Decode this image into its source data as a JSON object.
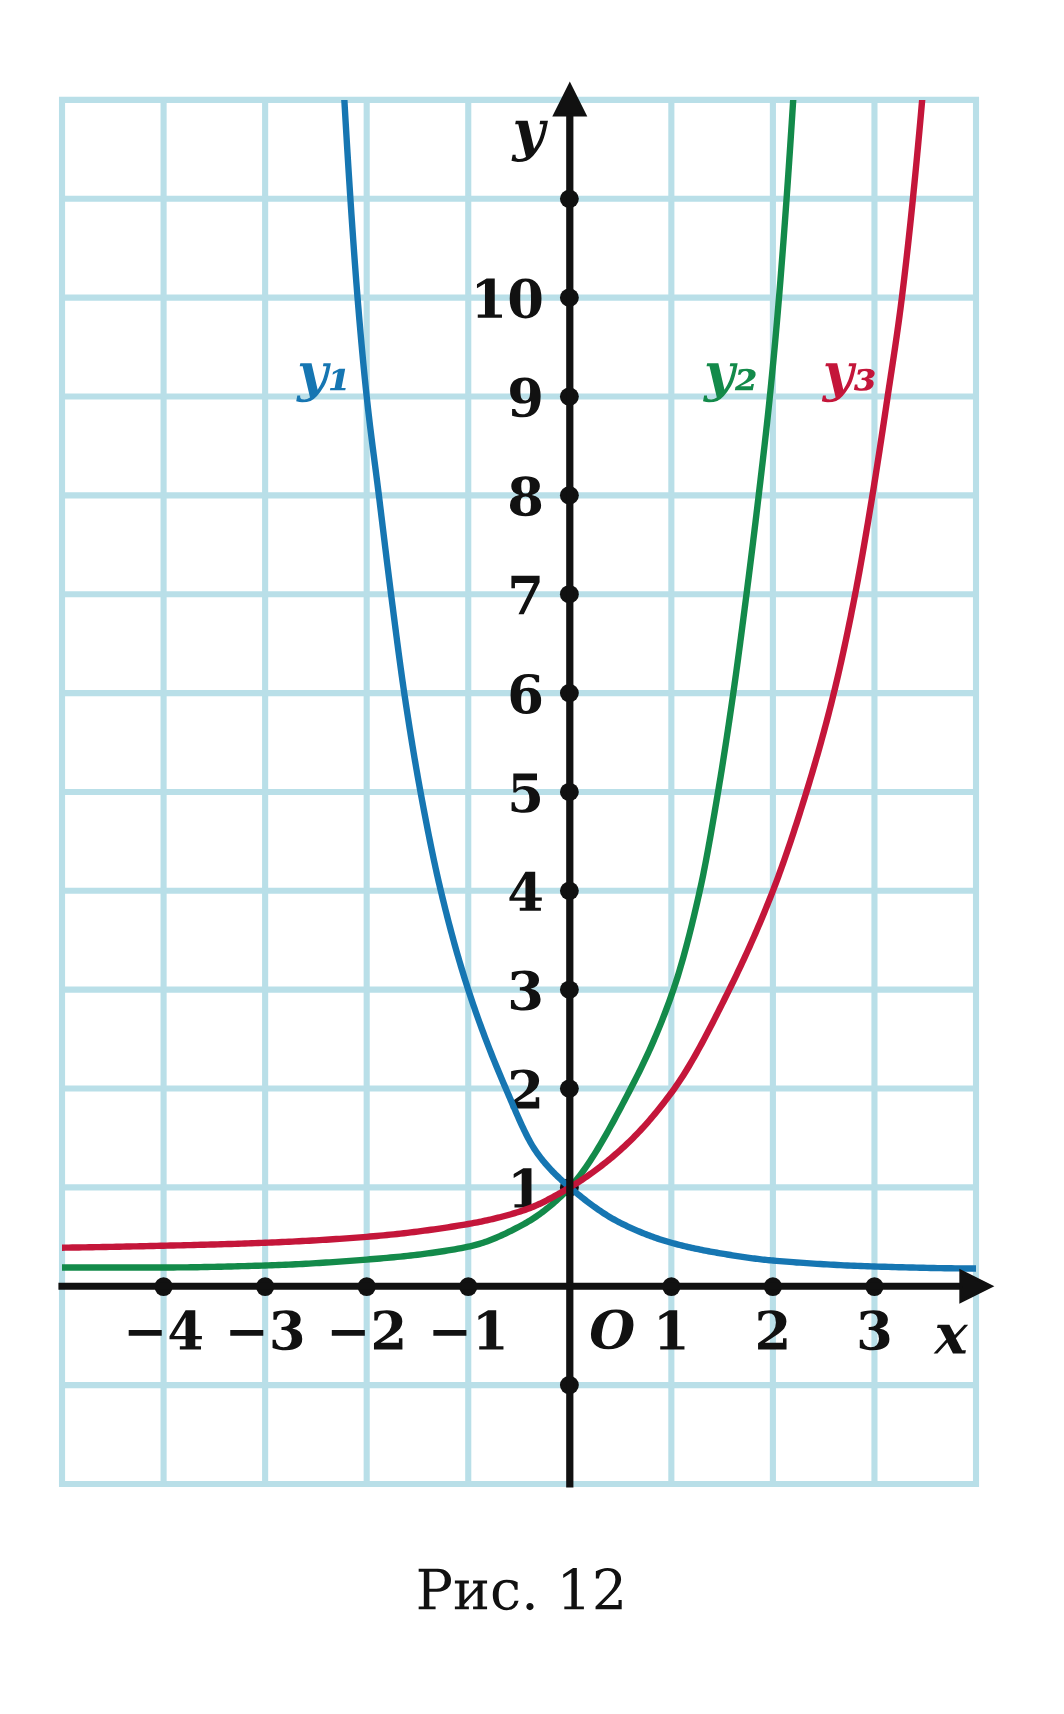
{
  "chart_data": {
    "type": "line",
    "xlabel": "x",
    "ylabel": "y",
    "xlim": [
      -5,
      4
    ],
    "ylim": [
      -2,
      12
    ],
    "xticks": [
      {
        "value": -4,
        "label": "−4"
      },
      {
        "value": -3,
        "label": "−3"
      },
      {
        "value": -2,
        "label": "−2"
      },
      {
        "value": -1,
        "label": "−1"
      },
      1,
      2,
      3
    ],
    "yticks": [
      {
        "value": -1,
        "label": null
      },
      1,
      2,
      3,
      4,
      5,
      6,
      7,
      8,
      9,
      10,
      {
        "value": 11,
        "label": null
      }
    ],
    "grid": true,
    "series": [
      {
        "name": "y₁",
        "color": "#1676b2",
        "x": [
          -2.22,
          -2.09,
          -2.0,
          -1.88,
          -1.76,
          -1.63,
          -1.47,
          -1.27,
          -1.0,
          -0.63,
          -0.33,
          0,
          0.5,
          1,
          1.5,
          2,
          3,
          4
        ],
        "values": [
          12,
          10,
          9,
          8,
          7,
          6,
          5,
          4,
          3,
          2,
          1.36,
          1,
          0.64,
          0.44,
          0.33,
          0.26,
          0.2,
          0.18
        ]
      },
      {
        "name": "y₂",
        "color": "#138a4a",
        "x": [
          -5,
          -4,
          -3,
          -2,
          -1,
          -0.45,
          0,
          0.6,
          1.02,
          1.28,
          1.46,
          1.61,
          1.74,
          1.86,
          1.97,
          2.06,
          2.2
        ],
        "values": [
          0.19,
          0.19,
          0.21,
          0.27,
          0.4,
          0.63,
          1,
          2,
          3,
          4,
          5,
          6,
          7,
          8,
          9,
          10,
          12
        ]
      },
      {
        "name": "y₃",
        "color": "#c4163a",
        "x": [
          -5,
          -4,
          -3,
          -2,
          -1,
          -0.45,
          0,
          0.5,
          1.03,
          1.57,
          2.0,
          2.33,
          2.6,
          2.81,
          2.98,
          3.13,
          3.27,
          3.47
        ],
        "values": [
          0.39,
          0.41,
          0.44,
          0.5,
          0.63,
          0.77,
          1,
          1.38,
          2,
          3,
          4,
          5,
          6,
          7,
          8,
          9,
          10,
          12
        ]
      }
    ],
    "annotations": [
      "O",
      "Рис. 12"
    ]
  }
}
